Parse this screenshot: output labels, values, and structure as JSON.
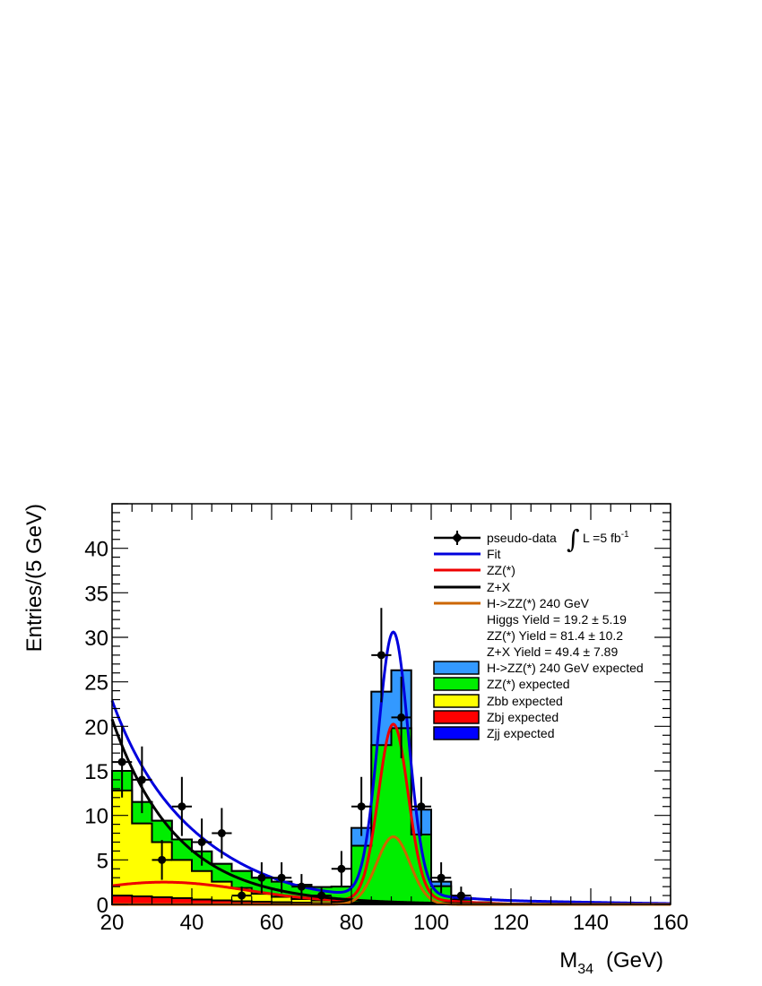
{
  "chart_data": {
    "type": "histogram",
    "xlabel_main": "M",
    "xlabel_sub": "34",
    "xlabel_unit": "(GeV)",
    "ylabel": "Entries/(5 GeV)",
    "xlim": [
      20,
      160
    ],
    "ylim": [
      0,
      45
    ],
    "x_ticks": [
      20,
      40,
      60,
      80,
      100,
      120,
      140,
      160
    ],
    "y_ticks": [
      0,
      5,
      10,
      15,
      20,
      25,
      30,
      35,
      40
    ],
    "bin_width": 5,
    "bin_lows": [
      20,
      25,
      30,
      35,
      40,
      45,
      50,
      55,
      60,
      65,
      70,
      75,
      80,
      85,
      90,
      95,
      100,
      105,
      110
    ],
    "stack": [
      {
        "name": "Zjj expected",
        "color": "#0000ff",
        "values": [
          0,
          0,
          0,
          0,
          0,
          0,
          0,
          0,
          0,
          0,
          0,
          0,
          0,
          0,
          0,
          0,
          0,
          0,
          0
        ]
      },
      {
        "name": "Zbj expected",
        "color": "#ff0000",
        "values": [
          1.0,
          0.9,
          0.8,
          0.7,
          0.55,
          0.45,
          0.35,
          0.3,
          0.25,
          0.2,
          0.15,
          0.1,
          0.1,
          0.1,
          0.1,
          0.05,
          0.05,
          0.05,
          0.05
        ]
      },
      {
        "name": "Zbb expected",
        "color": "#ffff00",
        "values": [
          11.8,
          8.2,
          6.2,
          4.3,
          3.2,
          2.1,
          1.5,
          0.9,
          0.6,
          0.4,
          0.3,
          0.2,
          0.1,
          0.1,
          0.1,
          0.1,
          0,
          0,
          0
        ]
      },
      {
        "name": "ZZ(*) expected",
        "color": "#00ee00",
        "values": [
          2.2,
          2.4,
          2.4,
          2.3,
          2.2,
          2.0,
          1.9,
          1.8,
          1.7,
          1.6,
          1.5,
          1.7,
          6.4,
          17.7,
          19.6,
          7.7,
          2.0,
          0.5,
          0.2
        ]
      },
      {
        "name": "H->ZZ(*) 240 GeV expected",
        "color": "#3399ff",
        "values": [
          0,
          0,
          0,
          0,
          0,
          0,
          0,
          0,
          0,
          0,
          0,
          0,
          2.0,
          6.0,
          6.5,
          2.8,
          0.5,
          0,
          0
        ]
      }
    ],
    "data_points": {
      "name": "pseudo-data",
      "x": [
        22.5,
        27.5,
        32.5,
        37.5,
        42.5,
        47.5,
        52.5,
        57.5,
        62.5,
        67.5,
        72.5,
        77.5,
        82.5,
        87.5,
        92.5,
        97.5,
        102.5,
        107.5
      ],
      "y": [
        16,
        14,
        5,
        11,
        7,
        8,
        1,
        3,
        3,
        2,
        1,
        4,
        11,
        28,
        21,
        11,
        3,
        1
      ]
    },
    "curves": [
      {
        "name": "Fit",
        "color": "#0000dd",
        "func": "fit"
      },
      {
        "name": "ZZ(*)",
        "color": "#ee0000",
        "func": "zz"
      },
      {
        "name": "Z+X",
        "color": "#000000",
        "func": "zx"
      },
      {
        "name": "H->ZZ(*) 240 GeV",
        "color": "#cc6600",
        "func": "higgs"
      }
    ],
    "legend_placement": "top-right",
    "legend": {
      "pseudo_data": "pseudo-data",
      "lumi_L": "L =5 fb",
      "lumi_exp": "-1",
      "fit": "Fit",
      "zz": "ZZ(*)",
      "zx": "Z+X",
      "higgs": "H->ZZ(*) 240 GeV",
      "yield_higgs": "Higgs  Yield = 19.2 ± 5.19",
      "yield_zz": "ZZ(*) Yield = 81.4 ± 10.2",
      "yield_zx": "Z+X Yield = 49.4 ± 7.89",
      "h_expected": "H->ZZ(*) 240 GeV expected",
      "zz_expected": "ZZ(*) expected",
      "zbb_expected": "Zbb expected",
      "zbj_expected": "Zbj expected",
      "zjj_expected": "Zjj expected"
    }
  }
}
